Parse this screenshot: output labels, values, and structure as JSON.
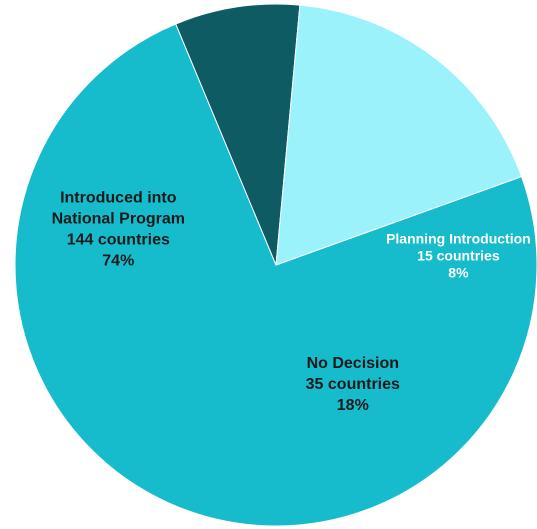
{
  "chart_data": {
    "type": "pie",
    "title": "",
    "slices": [
      {
        "name": "Introduced into National Program",
        "value": 144,
        "percent": 74,
        "label_lines": [
          "Introduced into",
          "National Program",
          "144 countries",
          "74%"
        ],
        "color": "#16BCCB"
      },
      {
        "name": "Planning Introduction",
        "value": 15,
        "percent": 8,
        "label_lines": [
          "Planning Introduction",
          "15 countries",
          "8%"
        ],
        "color": "#0E5B63"
      },
      {
        "name": "No Decision",
        "value": 35,
        "percent": 18,
        "label_lines": [
          "No Decision",
          "35 countries",
          "18%"
        ],
        "color": "#9BF2FB"
      }
    ]
  }
}
